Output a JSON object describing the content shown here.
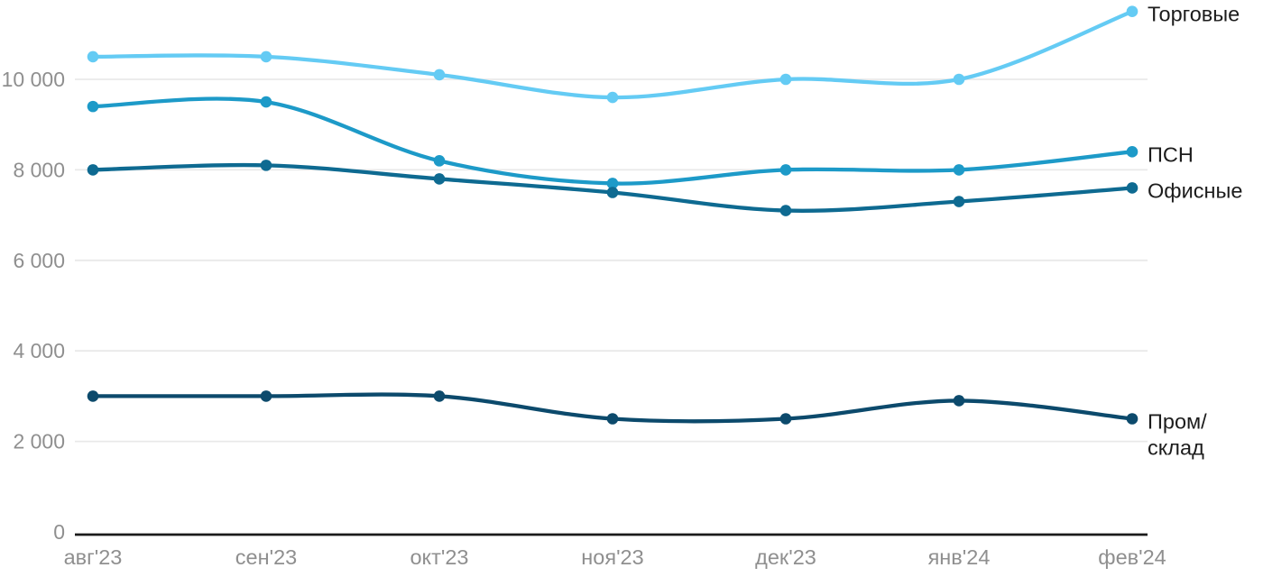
{
  "chart_data": {
    "type": "line",
    "title": "",
    "xlabel": "",
    "ylabel": "",
    "grid": "horizontal",
    "legend_position": "right-of-line-ends",
    "ylim": [
      0,
      11600
    ],
    "categories": [
      "авг'23",
      "сен'23",
      "окт'23",
      "ноя'23",
      "дек'23",
      "янв'24",
      "фев'24"
    ],
    "y_ticks": [
      {
        "value": 0,
        "label": "0"
      },
      {
        "value": 2000,
        "label": "2 000"
      },
      {
        "value": 4000,
        "label": "4 000"
      },
      {
        "value": 6000,
        "label": "6 000"
      },
      {
        "value": 8000,
        "label": "8 000"
      },
      {
        "value": 10000,
        "label": "10 000"
      }
    ],
    "series": [
      {
        "name": "Торговые",
        "label_lines": [
          "Торговые"
        ],
        "color": "#64CBF4",
        "values": [
          10500,
          10500,
          10100,
          9600,
          10000,
          10000,
          11500
        ]
      },
      {
        "name": "ПСН",
        "label_lines": [
          "ПСН"
        ],
        "color": "#1D9AC8",
        "values": [
          9400,
          9500,
          8200,
          7700,
          8000,
          8000,
          8400
        ]
      },
      {
        "name": "Офисные",
        "label_lines": [
          "Офисные"
        ],
        "color": "#0E6A91",
        "values": [
          8000,
          8100,
          7800,
          7500,
          7100,
          7300,
          7600
        ]
      },
      {
        "name": "Пром/склад",
        "label_lines": [
          "Пром/",
          "склад"
        ],
        "color": "#0C4A6C",
        "values": [
          3000,
          3000,
          3000,
          2500,
          2500,
          2900,
          2500
        ]
      }
    ]
  },
  "colors": {
    "background": "#FFFFFF",
    "gridline": "#E9E9E9",
    "axis_line": "#1A1A1A",
    "tick_text": "#8F8F8F",
    "legend_text": "#1C1C1C"
  }
}
